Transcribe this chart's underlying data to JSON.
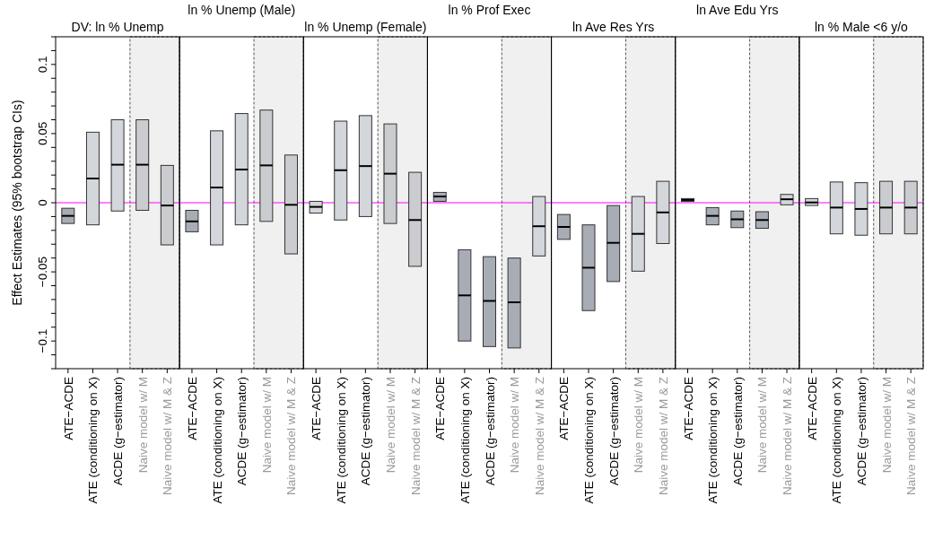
{
  "chart_data": [
    {
      "type": "box",
      "title": "DV: ln % Unemp",
      "ylabel": "Effect Estimates (95% bootstrap CIs)",
      "categories": [
        "ATE−ACDE",
        "ATE (conditioning on X)",
        "ACDE (g−estimator)",
        "Naive model w/ M",
        "Naive model w/ M & Z"
      ],
      "ylim": [
        -0.12,
        0.12
      ],
      "yticks": [
        {
          "value": -0.12,
          "label": null
        },
        {
          "value": -0.11,
          "label": null
        },
        {
          "value": -0.1,
          "label": "−0.1"
        },
        {
          "value": -0.09,
          "label": null
        },
        {
          "value": -0.08,
          "label": null
        },
        {
          "value": -0.07,
          "label": null
        },
        {
          "value": -0.06,
          "label": null
        },
        {
          "value": -0.05,
          "label": "−0.05"
        },
        {
          "value": -0.04,
          "label": null
        },
        {
          "value": -0.03,
          "label": null
        },
        {
          "value": -0.02,
          "label": null
        },
        {
          "value": -0.01,
          "label": null
        },
        {
          "value": 0,
          "label": "0"
        },
        {
          "value": 0.01,
          "label": null
        },
        {
          "value": 0.02,
          "label": null
        },
        {
          "value": 0.03,
          "label": null
        },
        {
          "value": 0.04,
          "label": null
        },
        {
          "value": 0.05,
          "label": "0.05"
        },
        {
          "value": 0.06,
          "label": null
        },
        {
          "value": 0.07,
          "label": null
        },
        {
          "value": 0.08,
          "label": null
        },
        {
          "value": 0.09,
          "label": null
        },
        {
          "value": 0.1,
          "label": "0.1"
        },
        {
          "value": 0.11,
          "label": null
        },
        {
          "value": 0.12,
          "label": null
        }
      ],
      "boxes": [
        {
          "low": -0.015,
          "q1": -0.015,
          "median": -0.0095,
          "q3": -0.004,
          "high": -0.004
        },
        {
          "low": -0.016,
          "q1": -0.016,
          "median": 0.0175,
          "q3": 0.051,
          "high": 0.051
        },
        {
          "low": -0.006,
          "q1": -0.006,
          "median": 0.0275,
          "q3": 0.06,
          "high": 0.06
        },
        {
          "low": -0.0055,
          "q1": -0.0055,
          "median": 0.0275,
          "q3": 0.06,
          "high": 0.06
        },
        {
          "low": -0.0305,
          "q1": -0.0305,
          "median": -0.002,
          "q3": 0.027,
          "high": 0.027
        }
      ],
      "colors": [
        "#a8adb5",
        "#d3d6da",
        "#d3d6da",
        "#caccd0",
        "#caccd0"
      ],
      "ref_lines": [
        {
          "axis": "y",
          "value": 0,
          "color": "#ff00ff"
        }
      ],
      "bands": [
        {
          "axis": "x",
          "from": "Naive model w/ M",
          "to": "Naive model w/ M & Z",
          "color": "#f0f0f0"
        }
      ]
    },
    {
      "type": "box",
      "title": "ln % Unemp (Male)",
      "categories": [
        "ATE−ACDE",
        "ATE (conditioning on X)",
        "ACDE (g−estimator)",
        "Naive model w/ M",
        "Naive model w/ M & Z"
      ],
      "ylim": [
        -0.12,
        0.12
      ],
      "tick_labels": "x",
      "boxes": [
        {
          "low": -0.021,
          "q1": -0.021,
          "median": -0.0135,
          "q3": -0.0055,
          "high": -0.0055
        },
        {
          "low": -0.0305,
          "q1": -0.0305,
          "median": 0.011,
          "q3": 0.052,
          "high": 0.052
        },
        {
          "low": -0.016,
          "q1": -0.016,
          "median": 0.024,
          "q3": 0.0645,
          "high": 0.0645
        },
        {
          "low": -0.0135,
          "q1": -0.0135,
          "median": 0.027,
          "q3": 0.067,
          "high": 0.067
        },
        {
          "low": -0.037,
          "q1": -0.037,
          "median": -0.0015,
          "q3": 0.0345,
          "high": 0.0345
        }
      ],
      "colors": [
        "#a8adb5",
        "#d3d6da",
        "#d3d6da",
        "#caccd0",
        "#caccd0"
      ],
      "ref_lines": [
        {
          "axis": "y",
          "value": 0,
          "color": "#ff00ff"
        }
      ],
      "bands": [
        {
          "axis": "x",
          "from": "Naive model w/ M",
          "to": "Naive model w/ M & Z",
          "color": "#f0f0f0"
        }
      ]
    },
    {
      "type": "box",
      "title": "ln % Unemp (Female)",
      "categories": [
        "ATE−ACDE",
        "ATE (conditioning on X)",
        "ACDE (g−estimator)",
        "Naive model w/ M",
        "Naive model w/ M & Z"
      ],
      "ylim": [
        -0.12,
        0.12
      ],
      "tick_labels": "x",
      "boxes": [
        {
          "low": -0.0075,
          "q1": -0.0075,
          "median": -0.003,
          "q3": 0.001,
          "high": 0.001
        },
        {
          "low": -0.0125,
          "q1": -0.0125,
          "median": 0.0235,
          "q3": 0.059,
          "high": 0.059
        },
        {
          "low": -0.01,
          "q1": -0.01,
          "median": 0.0265,
          "q3": 0.063,
          "high": 0.063
        },
        {
          "low": -0.015,
          "q1": -0.015,
          "median": 0.021,
          "q3": 0.057,
          "high": 0.057
        },
        {
          "low": -0.046,
          "q1": -0.046,
          "median": -0.0125,
          "q3": 0.022,
          "high": 0.022
        }
      ],
      "colors": [
        "#d3d6da",
        "#d3d6da",
        "#d3d6da",
        "#caccd0",
        "#caccd0"
      ],
      "ref_lines": [
        {
          "axis": "y",
          "value": 0,
          "color": "#ff00ff"
        }
      ],
      "bands": [
        {
          "axis": "x",
          "from": "Naive model w/ M",
          "to": "Naive model w/ M & Z",
          "color": "#f0f0f0"
        }
      ]
    },
    {
      "type": "box",
      "title": "ln % Prof Exec",
      "categories": [
        "ATE−ACDE",
        "ATE (conditioning on X)",
        "ACDE (g−estimator)",
        "Naive model w/ M",
        "Naive model w/ M & Z"
      ],
      "ylim": [
        -0.12,
        0.12
      ],
      "tick_labels": "x",
      "boxes": [
        {
          "low": 0.001,
          "q1": 0.001,
          "median": 0.0045,
          "q3": 0.0075,
          "high": 0.0075
        },
        {
          "low": -0.1,
          "q1": -0.1,
          "median": -0.067,
          "q3": -0.034,
          "high": -0.034
        },
        {
          "low": -0.104,
          "q1": -0.104,
          "median": -0.071,
          "q3": -0.039,
          "high": -0.039
        },
        {
          "low": -0.105,
          "q1": -0.105,
          "median": -0.072,
          "q3": -0.04,
          "high": -0.04
        },
        {
          "low": -0.0385,
          "q1": -0.0385,
          "median": -0.017,
          "q3": 0.0045,
          "high": 0.0045
        }
      ],
      "colors": [
        "#a8adb5",
        "#a8adb5",
        "#a8adb5",
        "#a8adb5",
        "#d3d6da"
      ],
      "ref_lines": [
        {
          "axis": "y",
          "value": 0,
          "color": "#ff00ff"
        }
      ],
      "bands": [
        {
          "axis": "x",
          "from": "Naive model w/ M",
          "to": "Naive model w/ M & Z",
          "color": "#f0f0f0"
        }
      ]
    },
    {
      "type": "box",
      "title": "ln Ave Res Yrs",
      "categories": [
        "ATE−ACDE",
        "ATE (conditioning on X)",
        "ACDE (g−estimator)",
        "Naive model w/ M",
        "Naive model w/ M & Z"
      ],
      "ylim": [
        -0.12,
        0.12
      ],
      "tick_labels": "x",
      "boxes": [
        {
          "low": -0.0265,
          "q1": -0.0265,
          "median": -0.0175,
          "q3": -0.0085,
          "high": -0.0085
        },
        {
          "low": -0.078,
          "q1": -0.078,
          "median": -0.047,
          "q3": -0.016,
          "high": -0.016
        },
        {
          "low": -0.057,
          "q1": -0.057,
          "median": -0.029,
          "q3": -0.002,
          "high": -0.002
        },
        {
          "low": -0.0495,
          "q1": -0.0495,
          "median": -0.0225,
          "q3": 0.0045,
          "high": 0.0045
        },
        {
          "low": -0.0295,
          "q1": -0.0295,
          "median": -0.007,
          "q3": 0.0155,
          "high": 0.0155
        }
      ],
      "colors": [
        "#a8adb5",
        "#a8adb5",
        "#a8adb5",
        "#d3d6da",
        "#d3d6da"
      ],
      "ref_lines": [
        {
          "axis": "y",
          "value": 0,
          "color": "#ff00ff"
        }
      ],
      "bands": [
        {
          "axis": "x",
          "from": "Naive model w/ M",
          "to": "Naive model w/ M & Z",
          "color": "#f0f0f0"
        }
      ]
    },
    {
      "type": "box",
      "title": "ln Ave Edu Yrs",
      "categories": [
        "ATE−ACDE",
        "ATE (conditioning on X)",
        "ACDE (g−estimator)",
        "Naive model w/ M",
        "Naive model w/ M & Z"
      ],
      "ylim": [
        -0.12,
        0.12
      ],
      "tick_labels": "x",
      "boxes": [
        {
          "low": 0.001,
          "q1": 0.001,
          "median": 0.002,
          "q3": 0.003,
          "high": 0.003
        },
        {
          "low": -0.016,
          "q1": -0.016,
          "median": -0.0095,
          "q3": -0.0035,
          "high": -0.0035
        },
        {
          "low": -0.018,
          "q1": -0.018,
          "median": -0.012,
          "q3": -0.006,
          "high": -0.006
        },
        {
          "low": -0.0185,
          "q1": -0.0185,
          "median": -0.0125,
          "q3": -0.0065,
          "high": -0.0065
        },
        {
          "low": -0.0015,
          "q1": -0.0015,
          "median": 0.0025,
          "q3": 0.006,
          "high": 0.006
        }
      ],
      "colors": [
        "#a8adb5",
        "#a8adb5",
        "#a8adb5",
        "#a8adb5",
        "#d3d6da"
      ],
      "ref_lines": [
        {
          "axis": "y",
          "value": 0,
          "color": "#ff00ff"
        }
      ],
      "bands": [
        {
          "axis": "x",
          "from": "Naive model w/ M",
          "to": "Naive model w/ M & Z",
          "color": "#f0f0f0"
        }
      ]
    },
    {
      "type": "box",
      "title": "ln % Male <6 y/o",
      "categories": [
        "ATE−ACDE",
        "ATE (conditioning on X)",
        "ACDE (g−estimator)",
        "Naive model w/ M",
        "Naive model w/ M & Z"
      ],
      "ylim": [
        -0.12,
        0.12
      ],
      "tick_labels": "x",
      "boxes": [
        {
          "low": -0.002,
          "q1": -0.002,
          "median": 0.0002,
          "q3": 0.003,
          "high": 0.003
        },
        {
          "low": -0.0225,
          "q1": -0.0225,
          "median": -0.0035,
          "q3": 0.015,
          "high": 0.015
        },
        {
          "low": -0.0235,
          "q1": -0.0235,
          "median": -0.0045,
          "q3": 0.0145,
          "high": 0.0145
        },
        {
          "low": -0.0225,
          "q1": -0.0225,
          "median": -0.0035,
          "q3": 0.0155,
          "high": 0.0155
        },
        {
          "low": -0.0225,
          "q1": -0.0225,
          "median": -0.0035,
          "q3": 0.0155,
          "high": 0.0155
        }
      ],
      "colors": [
        "#d3d6da",
        "#d3d6da",
        "#d3d6da",
        "#caccd0",
        "#caccd0"
      ],
      "ref_lines": [
        {
          "axis": "y",
          "value": 0,
          "color": "#ff00ff"
        }
      ],
      "bands": [
        {
          "axis": "x",
          "from": "Naive model w/ M",
          "to": "Naive model w/ M & Z",
          "color": "#f0f0f0"
        }
      ]
    }
  ]
}
